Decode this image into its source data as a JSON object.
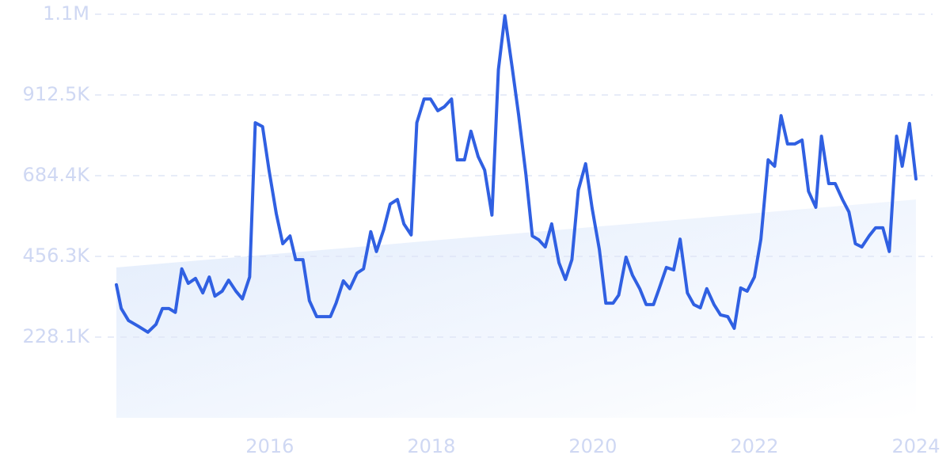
{
  "chart_data": {
    "type": "line",
    "x": [
      2014.1,
      2014.16,
      2014.25,
      2014.37,
      2014.49,
      2014.59,
      2014.67,
      2014.75,
      2014.83,
      2014.91,
      2014.99,
      2015.08,
      2015.17,
      2015.25,
      2015.32,
      2015.41,
      2015.49,
      2015.58,
      2015.66,
      2015.75,
      2015.82,
      2015.91,
      2015.99,
      2016.08,
      2016.16,
      2016.25,
      2016.32,
      2016.41,
      2016.49,
      2016.58,
      2016.75,
      2016.82,
      2016.91,
      2016.99,
      2017.08,
      2017.16,
      2017.25,
      2017.32,
      2017.41,
      2017.49,
      2017.58,
      2017.66,
      2017.75,
      2017.82,
      2017.91,
      2017.99,
      2018.08,
      2018.16,
      2018.25,
      2018.32,
      2018.41,
      2018.49,
      2018.58,
      2018.66,
      2018.75,
      2018.83,
      2018.91,
      2019.0,
      2019.08,
      2019.17,
      2019.25,
      2019.33,
      2019.41,
      2019.49,
      2019.58,
      2019.66,
      2019.74,
      2019.82,
      2019.91,
      2019.99,
      2020.08,
      2020.16,
      2020.25,
      2020.32,
      2020.41,
      2020.49,
      2020.58,
      2020.66,
      2020.75,
      2020.82,
      2020.91,
      2021.0,
      2021.08,
      2021.17,
      2021.25,
      2021.33,
      2021.41,
      2021.5,
      2021.58,
      2021.67,
      2021.75,
      2021.83,
      2021.91,
      2022.0,
      2022.08,
      2022.17,
      2022.25,
      2022.33,
      2022.41,
      2022.5,
      2022.59,
      2022.67,
      2022.76,
      2022.83,
      2022.92,
      2023.0,
      2023.09,
      2023.17,
      2023.25,
      2023.33,
      2023.42,
      2023.5,
      2023.59,
      2023.67,
      2023.76,
      2023.83,
      2023.92,
      2024.0
    ],
    "series": [
      {
        "color": "#3060e2",
        "values": [
          376000,
          309000,
          275000,
          259000,
          242000,
          264000,
          309000,
          309000,
          298000,
          421000,
          380000,
          394000,
          353000,
          398000,
          344000,
          358000,
          389000,
          358000,
          336000,
          398000,
          834000,
          823000,
          700000,
          577000,
          492000,
          514000,
          447000,
          447000,
          331000,
          286000,
          286000,
          324000,
          387000,
          365000,
          409000,
          421000,
          526000,
          470000,
          532000,
          604000,
          617000,
          548000,
          517000,
          834000,
          901000,
          901000,
          868000,
          879000,
          901000,
          729000,
          729000,
          810000,
          738000,
          700000,
          573000,
          984000,
          1136000,
          991000,
          857000,
          689000,
          514000,
          503000,
          483000,
          548000,
          438000,
          391000,
          447000,
          644000,
          718000,
          593000,
          476000,
          324000,
          324000,
          347000,
          454000,
          403000,
          365000,
          320000,
          320000,
          365000,
          425000,
          418000,
          505000,
          353000,
          320000,
          311000,
          365000,
          320000,
          291000,
          286000,
          253000,
          367000,
          358000,
          398000,
          505000,
          729000,
          711000,
          854000,
          774000,
          774000,
          785000,
          640000,
          595000,
          796000,
          662000,
          662000,
          617000,
          582000,
          492000,
          483000,
          514000,
          537000,
          537000,
          470000,
          796000,
          711000,
          832000,
          675000
        ]
      }
    ],
    "trend_values": [
      425000,
      617000
    ],
    "xlim": [
      2014.1,
      2024.0
    ],
    "xticks": [
      2016,
      2018,
      2020,
      2022,
      2024
    ],
    "ylim": [
      0,
      1140625
    ],
    "yticks": [
      {
        "value": 228125,
        "label": "228.1K"
      },
      {
        "value": 456250,
        "label": "456.3K"
      },
      {
        "value": 684375,
        "label": "684.4K"
      },
      {
        "value": 912500,
        "label": "912.5K"
      },
      {
        "value": 1140625,
        "label": "1.1M"
      }
    ],
    "grid": true
  }
}
